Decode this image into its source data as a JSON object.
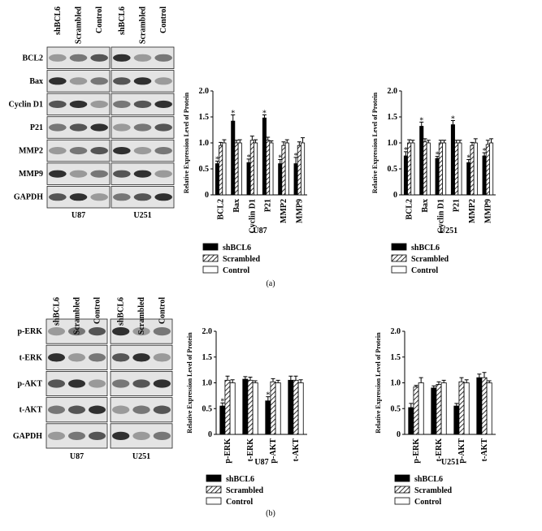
{
  "chart_data": [
    {
      "type": "bar",
      "title": "U87",
      "y_label": "Relative Expression Level of Protein",
      "categories": [
        "BCL2",
        "Bax",
        "Cyclin D1",
        "P21",
        "MMP2",
        "MMP9"
      ],
      "series": [
        {
          "name": "shBCL6",
          "color": "#000000",
          "values": [
            0.6,
            1.42,
            0.62,
            1.48,
            0.6,
            0.6
          ],
          "errors": [
            0.05,
            0.12,
            0.07,
            0.06,
            0.08,
            0.12
          ],
          "significance": [
            "*",
            "*",
            "*",
            "*",
            "*",
            "*"
          ]
        },
        {
          "name": "Scrambled",
          "color": "#ffffff",
          "hatch": true,
          "values": [
            0.95,
            1.0,
            1.05,
            1.05,
            0.95,
            0.95
          ],
          "errors": [
            0.06,
            0.05,
            0.08,
            0.06,
            0.07,
            0.07
          ]
        },
        {
          "name": "Control",
          "color": "#ffffff",
          "values": [
            1.0,
            1.0,
            1.0,
            1.0,
            1.0,
            1.0
          ],
          "errors": [
            0.06,
            0.06,
            0.06,
            0.04,
            0.06,
            0.1
          ]
        }
      ],
      "ylim": [
        0,
        2
      ],
      "yticks": [
        0,
        0.5,
        {
          "value": 1,
          "label": "1.0"
        },
        1.5,
        {
          "value": 2,
          "label": "2.0"
        }
      ]
    },
    {
      "type": "bar",
      "title": "U251",
      "y_label": "Relative Expression Level of Protein",
      "categories": [
        "BCL2",
        "Bax",
        "Cyclin D1",
        "P21",
        "MMP2",
        "MMP9"
      ],
      "series": [
        {
          "name": "shBCL6",
          "color": "#000000",
          "values": [
            0.75,
            1.32,
            0.7,
            1.35,
            0.62,
            0.75
          ],
          "errors": [
            0.08,
            0.08,
            0.04,
            0.08,
            0.06,
            0.06
          ],
          "significance": [
            "*",
            "*",
            "*",
            "*",
            "*",
            "*"
          ]
        },
        {
          "name": "Scrambled",
          "color": "#ffffff",
          "hatch": true,
          "values": [
            1.0,
            1.02,
            1.0,
            1.0,
            0.95,
            0.97
          ],
          "errors": [
            0.06,
            0.06,
            0.05,
            0.05,
            0.06,
            0.08
          ]
        },
        {
          "name": "Control",
          "color": "#ffffff",
          "values": [
            1.0,
            1.0,
            1.0,
            1.0,
            1.0,
            1.0
          ],
          "errors": [
            0.05,
            0.05,
            0.05,
            0.05,
            0.08,
            0.08
          ]
        }
      ],
      "ylim": [
        0,
        2
      ],
      "yticks": [
        0,
        0.5,
        {
          "value": 1,
          "label": "1.0"
        },
        1.5,
        {
          "value": 2,
          "label": "2.0"
        }
      ]
    },
    {
      "type": "bar",
      "title": "U87",
      "y_label": "Relative Expression Level of Protein",
      "categories": [
        "p-ERK",
        "t-ERK",
        "p-AKT",
        "t-AKT"
      ],
      "series": [
        {
          "name": "shBCL6",
          "color": "#000000",
          "values": [
            0.55,
            1.07,
            0.65,
            1.05
          ],
          "errors": [
            0.06,
            0.05,
            0.08,
            0.08
          ],
          "significance": [
            "*",
            null,
            "*",
            null
          ]
        },
        {
          "name": "Scrambled",
          "color": "#ffffff",
          "hatch": true,
          "values": [
            1.05,
            1.05,
            1.02,
            1.05
          ],
          "errors": [
            0.08,
            0.06,
            0.06,
            0.08
          ]
        },
        {
          "name": "Control",
          "color": "#ffffff",
          "values": [
            1.0,
            1.0,
            1.0,
            1.0
          ],
          "errors": [
            0.06,
            0.04,
            0.05,
            0.06
          ]
        }
      ],
      "ylim": [
        0,
        2
      ],
      "yticks": [
        0,
        0.5,
        {
          "value": 1,
          "label": "1.0"
        },
        1.5,
        {
          "value": 2,
          "label": "2.0"
        }
      ]
    },
    {
      "type": "bar",
      "title": "U251",
      "y_label": "Relative Expression Level of Protein",
      "categories": [
        "p-ERK",
        "t-ERK",
        "p-AKT",
        "t-AKT"
      ],
      "series": [
        {
          "name": "shBCL6",
          "color": "#000000",
          "values": [
            0.52,
            0.9,
            0.55,
            1.1
          ],
          "errors": [
            0.08,
            0.04,
            0.05,
            0.07
          ]
        },
        {
          "name": "Scrambled",
          "color": "#ffffff",
          "hatch": true,
          "values": [
            0.92,
            0.97,
            1.02,
            1.1
          ],
          "errors": [
            0.03,
            0.05,
            0.08,
            0.1
          ]
        },
        {
          "name": "Control",
          "color": "#ffffff",
          "values": [
            1.0,
            1.0,
            1.0,
            1.0
          ],
          "errors": [
            0.1,
            0.05,
            0.06,
            0.04
          ]
        }
      ],
      "ylim": [
        0,
        2
      ],
      "yticks": [
        0,
        0.5,
        {
          "value": 1,
          "label": "1.0"
        },
        1.5,
        {
          "value": 2,
          "label": "2.0"
        }
      ]
    }
  ],
  "blots": [
    {
      "rows": [
        "BCL2",
        "Bax",
        "Cyclin D1",
        "P21",
        "MMP2",
        "MMP9",
        "GAPDH"
      ],
      "panels": [
        {
          "name": "U87",
          "columns": [
            "shBCL6",
            "Scrambled",
            "Control"
          ]
        },
        {
          "name": "U251",
          "columns": [
            "shBCL6",
            "Scrambled",
            "Control"
          ]
        }
      ]
    },
    {
      "rows": [
        "p-ERK",
        "t-ERK",
        "p-AKT",
        "t-AKT",
        "GAPDH"
      ],
      "panels": [
        {
          "name": "U87",
          "columns": [
            "shBCL6",
            "Scrambled",
            "Control"
          ]
        },
        {
          "name": "U251",
          "columns": [
            "shBCL6",
            "Scrambled",
            "Control"
          ]
        }
      ]
    }
  ],
  "panel_labels": [
    "(a)",
    "(b)"
  ]
}
